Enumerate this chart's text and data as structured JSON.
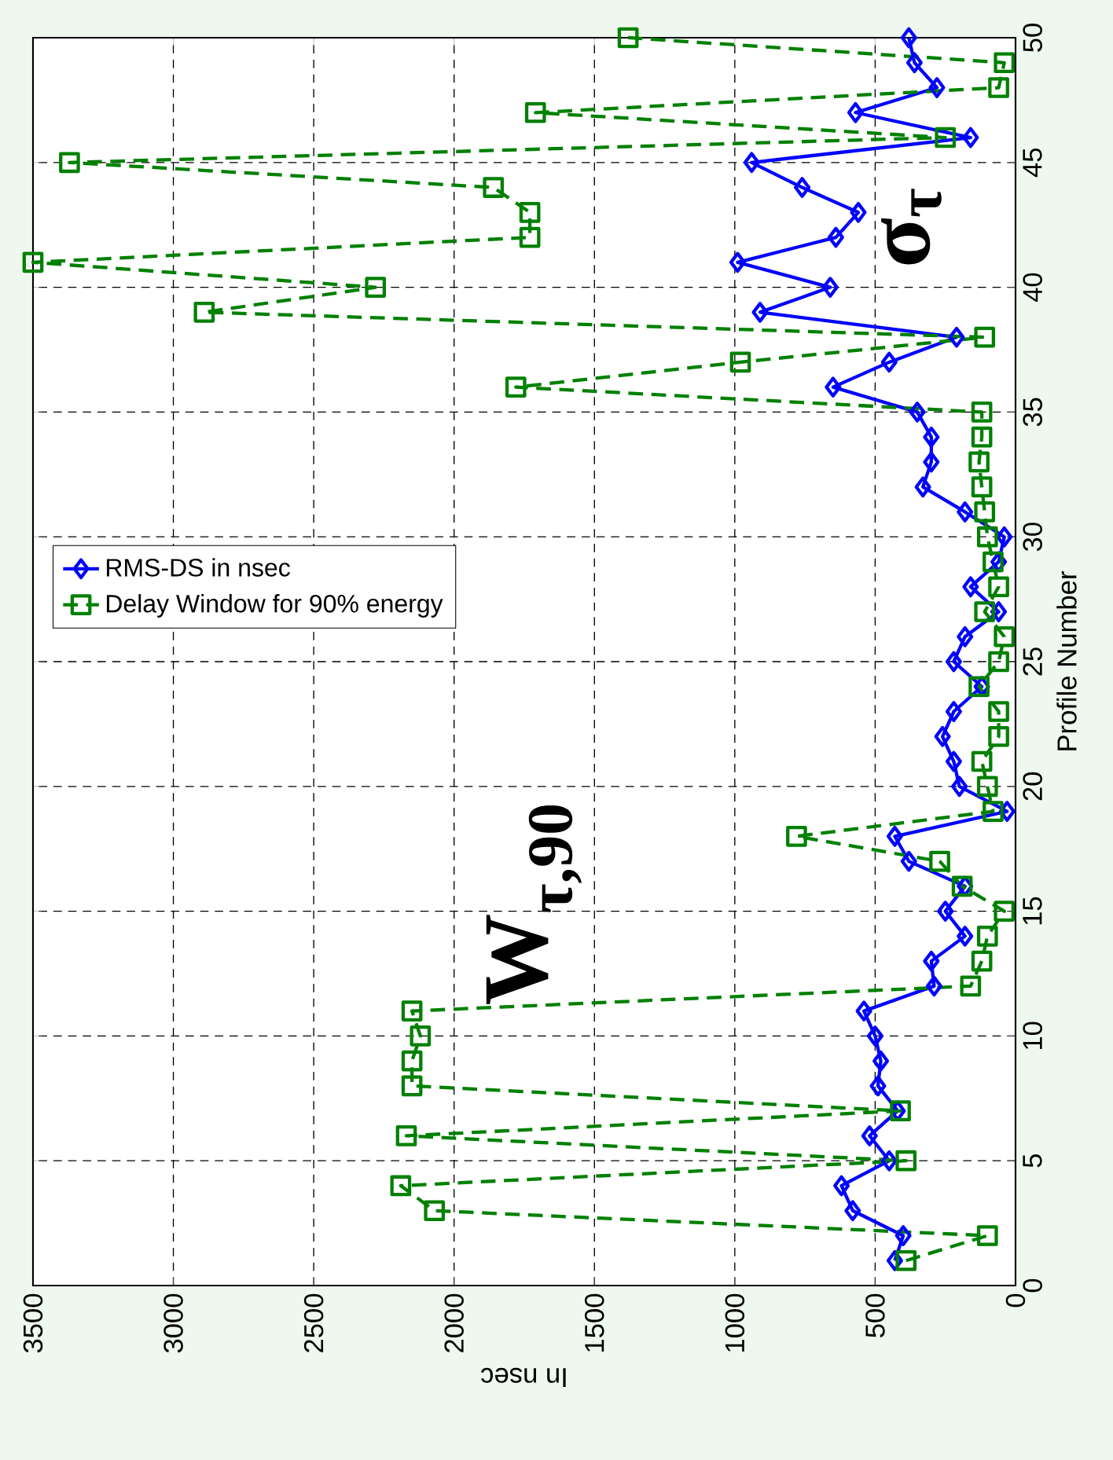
{
  "chart_data": {
    "type": "line",
    "xlabel": "In nsec",
    "ylabel": "Profile Number",
    "series": [
      {
        "name": "RMS-DS in nsec",
        "color": "#0000ff",
        "marker": "diamond",
        "line_style": "solid",
        "x": [
          430,
          400,
          580,
          620,
          450,
          520,
          420,
          490,
          480,
          500,
          540,
          290,
          300,
          180,
          250,
          180,
          380,
          430,
          30,
          200,
          220,
          260,
          220,
          120,
          220,
          180,
          60,
          160,
          60,
          40,
          180,
          330,
          300,
          300,
          350,
          650,
          450,
          210,
          910,
          660,
          990,
          640,
          560,
          760,
          940,
          160,
          570,
          280,
          360,
          380
        ],
        "values": [
          1,
          2,
          3,
          4,
          5,
          6,
          7,
          8,
          9,
          10,
          11,
          12,
          13,
          14,
          15,
          16,
          17,
          18,
          19,
          20,
          21,
          22,
          23,
          24,
          25,
          26,
          27,
          28,
          29,
          30,
          31,
          32,
          33,
          34,
          35,
          36,
          37,
          38,
          39,
          40,
          41,
          42,
          43,
          44,
          45,
          46,
          47,
          48,
          49,
          50
        ]
      },
      {
        "name": "Delay Window for 90% energy",
        "color": "#008000",
        "marker": "square",
        "line_style": "dashed",
        "x": [
          390,
          100,
          2070,
          2190,
          390,
          2170,
          410,
          2150,
          2150,
          2120,
          2150,
          160,
          120,
          100,
          40,
          190,
          270,
          780,
          80,
          100,
          120,
          60,
          60,
          130,
          60,
          40,
          110,
          60,
          80,
          100,
          110,
          120,
          130,
          120,
          120,
          1780,
          980,
          110,
          2890,
          2280,
          3500,
          1730,
          1730,
          1860,
          3370,
          250,
          1710,
          60,
          40,
          1380
        ],
        "values": [
          1,
          2,
          3,
          4,
          5,
          6,
          7,
          8,
          9,
          10,
          11,
          12,
          13,
          14,
          15,
          16,
          17,
          18,
          19,
          20,
          21,
          22,
          23,
          24,
          25,
          26,
          27,
          28,
          29,
          30,
          31,
          32,
          33,
          34,
          35,
          36,
          37,
          38,
          39,
          40,
          41,
          42,
          43,
          44,
          45,
          46,
          47,
          48,
          49,
          50
        ]
      }
    ],
    "xlim": [
      3500,
      0
    ],
    "ylim": [
      0,
      50
    ],
    "xticks": [
      3500,
      3000,
      2500,
      2000,
      1500,
      1000,
      500,
      0
    ],
    "yticks": [
      0,
      5,
      10,
      15,
      20,
      25,
      30,
      35,
      40,
      45,
      50
    ],
    "grid": true,
    "legend": "left",
    "annotations": [
      "W$_{τ,90}$",
      "σ$_{τ}$"
    ]
  }
}
